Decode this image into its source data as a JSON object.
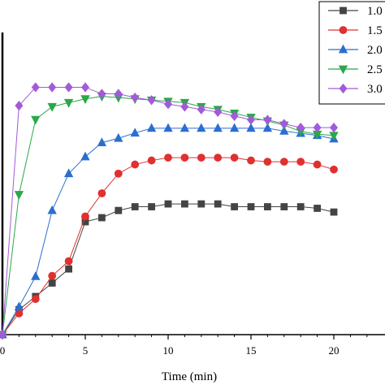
{
  "chart_data": {
    "type": "line",
    "title": "",
    "xlabel": "Time (min)",
    "ylabel": "",
    "xlim": [
      0,
      22.5
    ],
    "ylim": [
      0,
      1
    ],
    "grid": false,
    "legend_position": "top-right",
    "x_ticks": [
      0,
      5,
      10,
      15,
      20
    ],
    "x_tick_labels": [
      "0",
      "5",
      "10",
      "15",
      "20"
    ],
    "x": [
      0,
      1,
      2,
      3,
      4,
      5,
      6,
      7,
      8,
      9,
      10,
      11,
      12,
      13,
      14,
      15,
      16,
      17,
      18,
      19,
      20
    ],
    "series": [
      {
        "name": "1.0",
        "color": "#444444",
        "marker": "square",
        "values": [
          0.0,
          0.08,
          0.122,
          0.165,
          0.21,
          0.361,
          0.374,
          0.397,
          0.409,
          0.409,
          0.418,
          0.418,
          0.418,
          0.418,
          0.409,
          0.409,
          0.409,
          0.409,
          0.409,
          0.404,
          0.392
        ]
      },
      {
        "name": "1.5",
        "color": "#e03030",
        "marker": "circle",
        "values": [
          0.0,
          0.068,
          0.114,
          0.188,
          0.235,
          0.378,
          0.452,
          0.515,
          0.544,
          0.557,
          0.566,
          0.566,
          0.566,
          0.566,
          0.566,
          0.557,
          0.553,
          0.553,
          0.553,
          0.544,
          0.528
        ]
      },
      {
        "name": "2.0",
        "color": "#2a6fd0",
        "marker": "triangle-up",
        "values": [
          0.0,
          0.089,
          0.186,
          0.397,
          0.515,
          0.569,
          0.614,
          0.628,
          0.645,
          0.66,
          0.66,
          0.66,
          0.66,
          0.66,
          0.66,
          0.66,
          0.66,
          0.651,
          0.644,
          0.637,
          0.626
        ]
      },
      {
        "name": "2.5",
        "color": "#2aa84a",
        "marker": "triangle-down",
        "values": [
          0.0,
          0.448,
          0.688,
          0.729,
          0.742,
          0.754,
          0.762,
          0.758,
          0.754,
          0.75,
          0.746,
          0.742,
          0.729,
          0.72,
          0.708,
          0.695,
          0.683,
          0.67,
          0.65,
          0.641,
          0.637
        ]
      },
      {
        "name": "3.0",
        "color": "#a35ad8",
        "marker": "diamond",
        "values": [
          0.0,
          0.732,
          0.791,
          0.791,
          0.791,
          0.791,
          0.77,
          0.77,
          0.758,
          0.75,
          0.737,
          0.729,
          0.72,
          0.712,
          0.699,
          0.687,
          0.687,
          0.674,
          0.662,
          0.662,
          0.662
        ]
      }
    ]
  }
}
